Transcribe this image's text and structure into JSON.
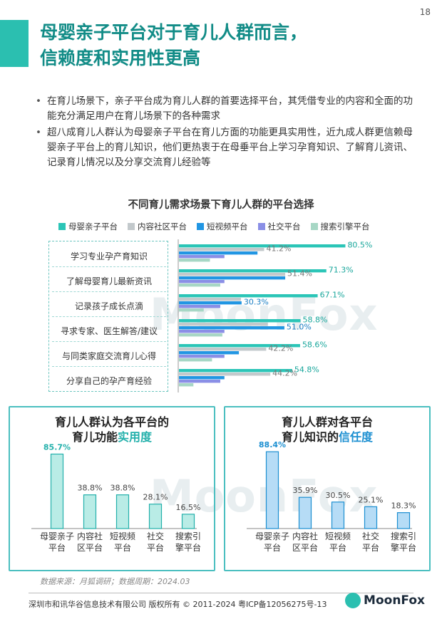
{
  "page_number": "18",
  "title_line1": "母婴亲子平台对于育儿人群而言，",
  "title_line2": "信赖度和实用性更高",
  "bullets": [
    "在育儿场景下，亲子平台成为育儿人群的首要选择平台，其凭借专业的内容和全面的功能充分满足用户在育儿场景下的各种需求",
    "超八成育儿人群认为母婴亲子平台在育儿方面的功能更具实用性，近九成人群更信赖母婴亲子平台上的育儿知识，他们更热衷于在母垂平台上学习孕育知识、了解育儿资讯、记录育儿情况以及分享交流育儿经验等"
  ],
  "watermark": "MoonFox",
  "colors": {
    "teal": "#2bc5b7",
    "gray": "#c3c9cc",
    "blue": "#2196e3",
    "purple": "#8a8fe6",
    "green": "#a7d7c5"
  },
  "chart_data": [
    {
      "type": "bar",
      "orientation": "horizontal",
      "title": "不同育儿需求场景下育儿人群的平台选择",
      "categories": [
        "学习专业孕产育知识",
        "了解母婴育儿最新资讯",
        "记录孩子成长点滴",
        "寻求专家、医生解答/建议",
        "与同类家庭交流育儿心得",
        "分享自己的孕产育经验"
      ],
      "series": [
        {
          "name": "母婴亲子平台",
          "color": "#2bc5b7",
          "values": [
            80.5,
            71.3,
            67.1,
            58.8,
            58.6,
            54.8
          ]
        },
        {
          "name": "内容社区平台",
          "color": "#c3c9cc",
          "values": [
            41.2,
            51.4,
            30.0,
            43.0,
            42.2,
            44.2
          ]
        },
        {
          "name": "短视频平台",
          "color": "#2196e3",
          "values": [
            38.0,
            51.4,
            30.3,
            51.0,
            29.0,
            22.0
          ]
        },
        {
          "name": "社交平台",
          "color": "#8a8fe6",
          "values": [
            22.0,
            22.0,
            20.0,
            22.0,
            22.0,
            20.0
          ]
        },
        {
          "name": "搜索引擎平台",
          "color": "#a7d7c5",
          "values": [
            15.0,
            20.0,
            12.0,
            21.0,
            16.0,
            7.0
          ]
        }
      ],
      "labels": [
        {
          "series": 0,
          "index": 0,
          "text": "80.5%"
        },
        {
          "series": 1,
          "index": 0,
          "text": "41.2%"
        },
        {
          "series": 0,
          "index": 1,
          "text": "71.3%"
        },
        {
          "series": 1,
          "index": 1,
          "text": "51.4%"
        },
        {
          "series": 0,
          "index": 2,
          "text": "67.1%"
        },
        {
          "series": 2,
          "index": 2,
          "text": "30.3%"
        },
        {
          "series": 0,
          "index": 3,
          "text": "58.8%"
        },
        {
          "series": 2,
          "index": 3,
          "text": "51.0%"
        },
        {
          "series": 0,
          "index": 4,
          "text": "58.6%"
        },
        {
          "series": 1,
          "index": 4,
          "text": "42.2%"
        },
        {
          "series": 0,
          "index": 5,
          "text": "54.8%"
        },
        {
          "series": 1,
          "index": 5,
          "text": "44.2%"
        }
      ],
      "xlim": [
        0,
        100
      ]
    },
    {
      "type": "bar",
      "title": "育儿人群认为各平台的育儿功能实用度",
      "title_line1": "育儿人群认为各平台的",
      "title_line2_plain": "育儿功能",
      "title_line2_highlight": "实用度",
      "categories": [
        "母婴亲子\n平台",
        "内容社\n区平台",
        "短视频\n平台",
        "社交\n平台",
        "搜索引\n擎平台"
      ],
      "values": [
        85.7,
        38.8,
        38.8,
        28.1,
        16.5
      ],
      "value_labels": [
        "85.7%",
        "38.8%",
        "38.8%",
        "28.1%",
        "16.5%"
      ],
      "ylim": [
        0,
        100
      ]
    },
    {
      "type": "bar",
      "title": "育儿人群对各平台育儿知识的信任度",
      "title_line1": "育儿人群对各平台",
      "title_line2_plain": "育儿知识的",
      "title_line2_highlight": "信任度",
      "categories": [
        "母婴亲子\n平台",
        "内容社\n区平台",
        "短视频\n平台",
        "社交\n平台",
        "搜索引\n擎平台"
      ],
      "values": [
        88.4,
        35.9,
        30.5,
        25.1,
        18.3
      ],
      "value_labels": [
        "88.4%",
        "35.9%",
        "30.5%",
        "25.1%",
        "18.3%"
      ],
      "ylim": [
        0,
        100
      ]
    }
  ],
  "source": "数据来源：月狐调研；数据周期：2024.03",
  "footer": "深圳市和讯华谷信息技术有限公司 版权所有 © 2011-2024 粤ICP备12056275号-13",
  "logo_text": "MoonFox"
}
